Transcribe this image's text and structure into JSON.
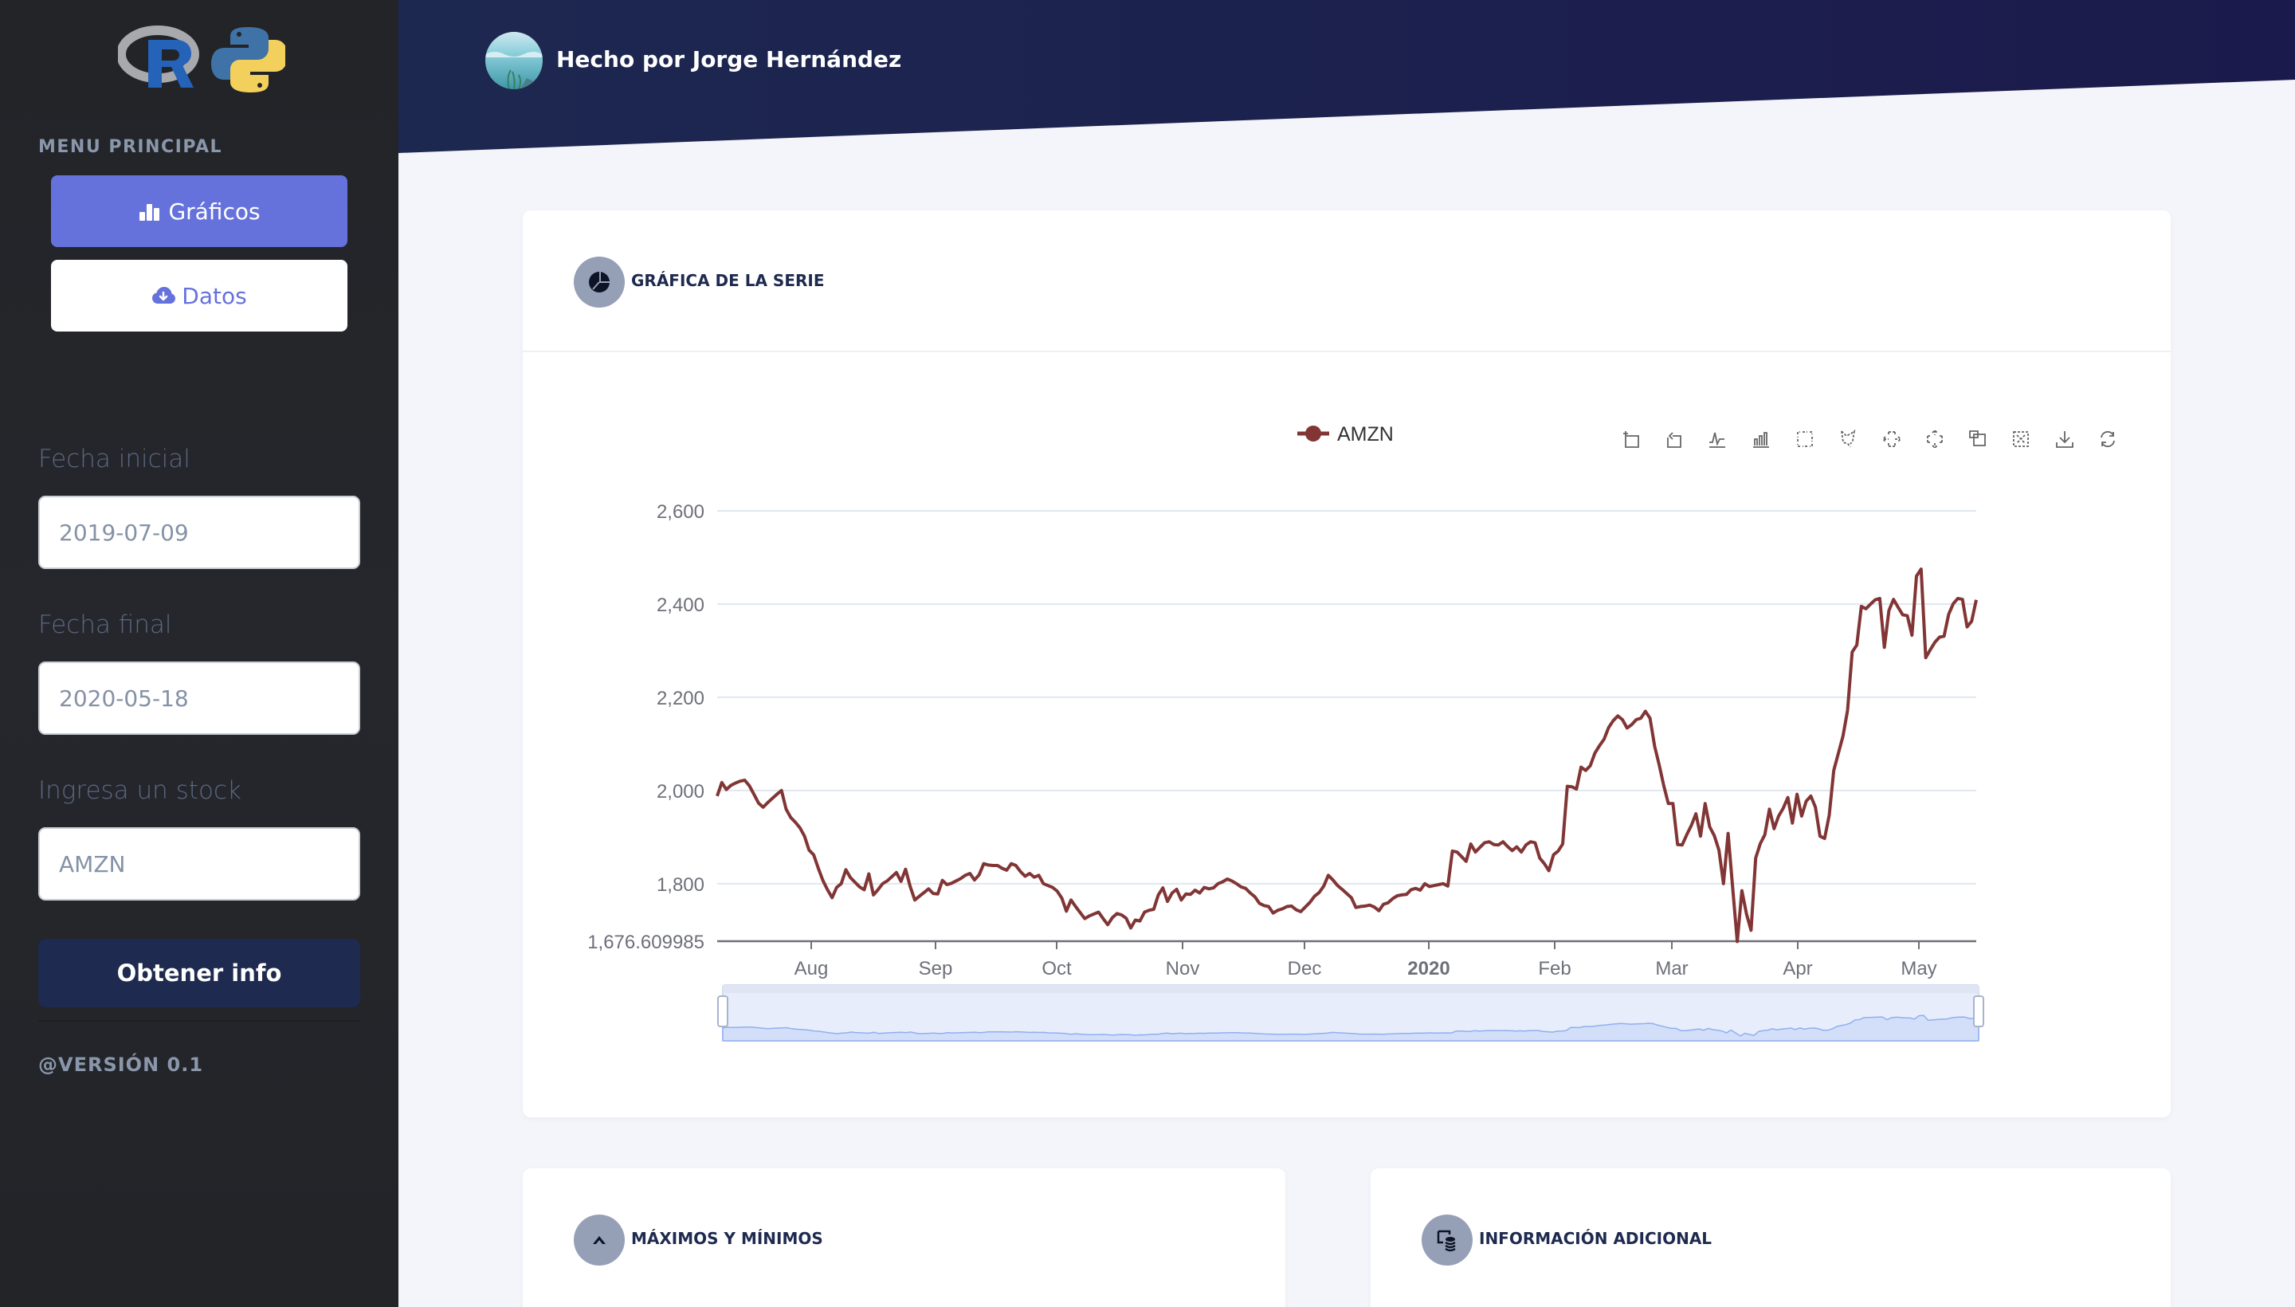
{
  "sidebar": {
    "logos": [
      "r-logo",
      "python-logo"
    ],
    "menu_title": "MENU PRINCIPAL",
    "nav": [
      {
        "label": "Gráficos",
        "icon": "bar-chart-icon",
        "active": true
      },
      {
        "label": "Datos",
        "icon": "cloud-download-icon",
        "active": false
      }
    ],
    "fields": [
      {
        "label": "Fecha inicial",
        "value": "2019-07-09"
      },
      {
        "label": "Fecha final",
        "value": "2020-05-18"
      },
      {
        "label": "Ingresa un stock",
        "value": "AMZN"
      }
    ],
    "submit_label": "Obtener info",
    "version": "@VERSIÓN 0.1"
  },
  "header": {
    "title": "Hecho por Jorge Hernández",
    "avatar": "ocean-avatar"
  },
  "colors": {
    "sidebar_bg": "#222428",
    "accent": "#6672dc",
    "navy": "#1e2a4f",
    "header_left": "#1d2850",
    "header_right": "#1b1a4c",
    "series": "#823535",
    "grid": "#e0e6f1",
    "icon_circle": "#959fb6"
  },
  "cards": {
    "chart": {
      "title": "GRÁFICA DE LA SERIE",
      "icon": "pie-chart-icon"
    },
    "maxmin": {
      "title": "MÁXIMOS Y MÍNIMOS",
      "icon": "chevron-up-icon"
    },
    "info": {
      "title": "INFORMACIÓN ADICIONAL",
      "icon": "info-database-icon"
    }
  },
  "toolbox": [
    {
      "name": "data-zoom",
      "title": "Zoom"
    },
    {
      "name": "zoom-reset",
      "title": "Back"
    },
    {
      "name": "line",
      "title": "Line"
    },
    {
      "name": "bar",
      "title": "Bar"
    },
    {
      "name": "brush-rect",
      "title": "Rectangle selection"
    },
    {
      "name": "brush-polygon",
      "title": "Polygon selection"
    },
    {
      "name": "brush-linex",
      "title": "Horizontal selection"
    },
    {
      "name": "brush-liney",
      "title": "Vertical selection"
    },
    {
      "name": "brush-keep",
      "title": "Keep selections"
    },
    {
      "name": "brush-clear",
      "title": "Clear selections"
    },
    {
      "name": "save-image",
      "title": "Save as image"
    },
    {
      "name": "restore",
      "title": "Restore"
    }
  ],
  "chart_data": {
    "type": "line",
    "title": "",
    "legend": [
      "AMZN"
    ],
    "legend_position": "top-center",
    "xlabel": "",
    "ylabel": "",
    "x_tick_labels": [
      "Aug",
      "Sep",
      "Oct",
      "Nov",
      "Dec",
      "2020",
      "Feb",
      "Mar",
      "Apr",
      "May"
    ],
    "y_tick_labels": [
      "1,676.609985",
      "1,800",
      "2,000",
      "2,200",
      "2,400",
      "2,600"
    ],
    "ylim": [
      1676.609985,
      2600
    ],
    "xlim": [
      "2019-07-09",
      "2020-05-18"
    ],
    "grid": true,
    "datazoom_slider": true,
    "series": [
      {
        "name": "AMZN",
        "color": "#823535",
        "x_start": "2019-07-09",
        "x_end": "2020-05-18",
        "values": [
          1988,
          2017,
          2002,
          2011,
          2016,
          2020,
          2022,
          2010,
          1992,
          1973,
          1964,
          1974,
          1983,
          1992,
          2000,
          1960,
          1942,
          1932,
          1920,
          1902,
          1872,
          1862,
          1833,
          1807,
          1787,
          1770,
          1792,
          1800,
          1830,
          1813,
          1803,
          1793,
          1787,
          1821,
          1776,
          1787,
          1800,
          1806,
          1815,
          1824,
          1805,
          1831,
          1794,
          1765,
          1773,
          1781,
          1789,
          1779,
          1778,
          1807,
          1798,
          1801,
          1806,
          1811,
          1818,
          1822,
          1808,
          1819,
          1843,
          1840,
          1839,
          1839,
          1833,
          1829,
          1843,
          1839,
          1826,
          1816,
          1822,
          1814,
          1818,
          1800,
          1796,
          1792,
          1784,
          1769,
          1741,
          1765,
          1751,
          1738,
          1725,
          1731,
          1735,
          1739,
          1725,
          1712,
          1727,
          1736,
          1733,
          1726,
          1705,
          1722,
          1720,
          1739,
          1743,
          1745,
          1776,
          1791,
          1762,
          1780,
          1788,
          1765,
          1778,
          1777,
          1786,
          1780,
          1792,
          1789,
          1791,
          1800,
          1804,
          1810,
          1806,
          1800,
          1793,
          1790,
          1780,
          1772,
          1758,
          1753,
          1751,
          1737,
          1743,
          1746,
          1751,
          1752,
          1744,
          1740,
          1750,
          1760,
          1773,
          1781,
          1795,
          1818,
          1808,
          1796,
          1788,
          1779,
          1770,
          1749,
          1751,
          1752,
          1754,
          1750,
          1742,
          1756,
          1759,
          1768,
          1774,
          1776,
          1777,
          1787,
          1790,
          1786,
          1800,
          1794,
          1796,
          1798,
          1800,
          1795,
          1870,
          1868,
          1858,
          1848,
          1885,
          1868,
          1878,
          1888,
          1890,
          1884,
          1883,
          1890,
          1880,
          1871,
          1879,
          1868,
          1883,
          1890,
          1888,
          1855,
          1843,
          1828,
          1862,
          1870,
          1885,
          2009,
          2008,
          2003,
          2050,
          2043,
          2053,
          2080,
          2096,
          2110,
          2135,
          2150,
          2160,
          2152,
          2134,
          2141,
          2152,
          2155,
          2170,
          2155,
          2095,
          2055,
          2010,
          1972,
          1972,
          1884,
          1883,
          1905,
          1925,
          1950,
          1902,
          1972,
          1922,
          1903,
          1872,
          1800,
          1908,
          1790,
          1676,
          1785,
          1735,
          1700,
          1855,
          1886,
          1905,
          1960,
          1918,
          1945,
          1962,
          1985,
          1930,
          1992,
          1945,
          1977,
          1988,
          1964,
          1902,
          1897,
          1947,
          2043,
          2080,
          2117,
          2172,
          2297,
          2312,
          2395,
          2390,
          2400,
          2409,
          2412,
          2307,
          2386,
          2410,
          2393,
          2377,
          2375,
          2333,
          2460,
          2475,
          2285,
          2302,
          2318,
          2329,
          2331,
          2378,
          2401,
          2412,
          2410,
          2351,
          2363,
          2409
        ]
      }
    ]
  }
}
